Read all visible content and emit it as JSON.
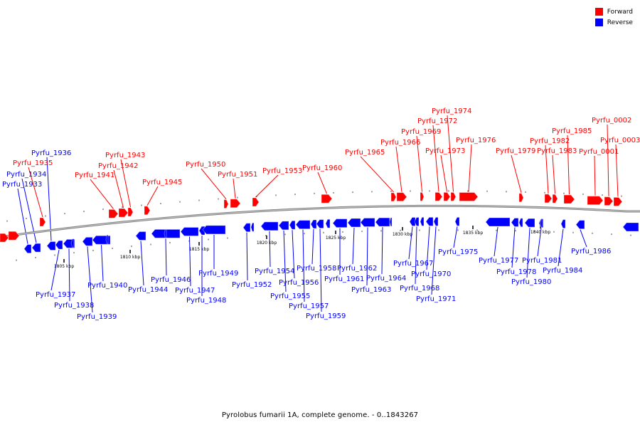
{
  "caption": "Pyrolobus fumarii 1A, complete genome. - 0..1843267",
  "legend": [
    {
      "label": "Forward",
      "color": "#ff0000"
    },
    {
      "label": "Reverse",
      "color": "#0000ff"
    }
  ],
  "colors": {
    "forward": "#ff0000",
    "reverse": "#0000ff",
    "axis": "#808080"
  },
  "scale_labels": [
    "1805 kbp",
    "1810 kbp",
    "1815 kbp",
    "1820 kbp",
    "1825 kbp",
    "1830 kbp",
    "1835 kbp",
    "1840 kbp"
  ],
  "genes_forward": [
    "Pyrfu_1935",
    "Pyrfu_1941",
    "Pyrfu_1942",
    "Pyrfu_1943",
    "Pyrfu_1945",
    "Pyrfu_1950",
    "Pyrfu_1951",
    "Pyrfu_1953",
    "Pyrfu_1960",
    "Pyrfu_1965",
    "Pyrfu_1966",
    "Pyrfu_1969",
    "Pyrfu_1972",
    "Pyrfu_1973",
    "Pyrfu_1974",
    "Pyrfu_1976",
    "Pyrfu_1979",
    "Pyrfu_1982",
    "Pyrfu_1983",
    "Pyrfu_1985",
    "Pyrfu_0001",
    "Pyrfu_0002",
    "Pyrfu_0003"
  ],
  "genes_reverse": [
    "Pyrfu_1933",
    "Pyrfu_1934",
    "Pyrfu_1936",
    "Pyrfu_1937",
    "Pyrfu_1938",
    "Pyrfu_1939",
    "Pyrfu_1940",
    "Pyrfu_1944",
    "Pyrfu_1946",
    "Pyrfu_1947",
    "Pyrfu_1948",
    "Pyrfu_1949",
    "Pyrfu_1952",
    "Pyrfu_1954",
    "Pyrfu_1955",
    "Pyrfu_1956",
    "Pyrfu_1957",
    "Pyrfu_1958",
    "Pyrfu_1959",
    "Pyrfu_1961",
    "Pyrfu_1962",
    "Pyrfu_1963",
    "Pyrfu_1964",
    "Pyrfu_1967",
    "Pyrfu_1968",
    "Pyrfu_1970",
    "Pyrfu_1971",
    "Pyrfu_1975",
    "Pyrfu_1977",
    "Pyrfu_1978",
    "Pyrfu_1980",
    "Pyrfu_1981",
    "Pyrfu_1984",
    "Pyrfu_1986"
  ]
}
